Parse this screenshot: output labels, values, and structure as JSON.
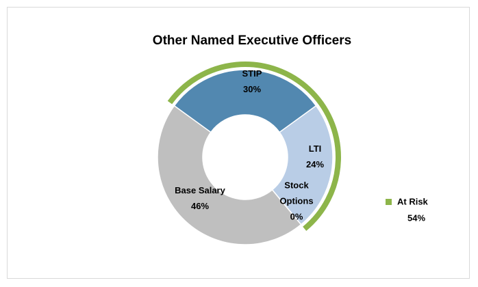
{
  "chart_data": {
    "type": "donut",
    "title": "Other Named Executive Officers",
    "categories": [
      "STIP",
      "LTI",
      "Stock Options",
      "Base Salary"
    ],
    "values": [
      30,
      24,
      0,
      46
    ],
    "value_labels": [
      "30%",
      "24%",
      "0%",
      "46%"
    ],
    "colors": [
      "#5288b0",
      "#b9cde6",
      "#4f6228",
      "#bfbfbf"
    ],
    "outer_series": {
      "name": "At Risk",
      "color": "#8db54a",
      "value": 54,
      "value_label": "54%"
    },
    "legend": "right"
  }
}
